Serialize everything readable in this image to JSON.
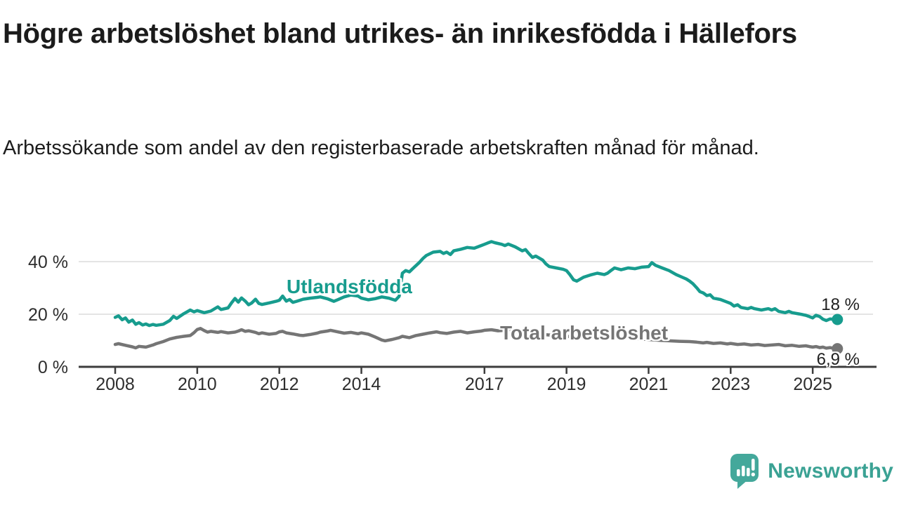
{
  "header": {
    "title": "Högre arbetslöshet bland utrikes- än inrikesfödda i Hällefors",
    "subtitle": "Arbetssökande som andel av den registerbaserade arbetskraften månad för månad."
  },
  "chart_data": {
    "type": "line",
    "title": "Högre arbetslöshet bland utrikes- än inrikesfödda i Hällefors",
    "subtitle": "Arbetssökande som andel av den registerbaserade arbetskraften månad för månad.",
    "xlabel": "",
    "ylabel": "",
    "unit": "%",
    "xlim": [
      2007.9,
      2025.9
    ],
    "ylim": [
      0,
      50
    ],
    "grid": "horizontal",
    "legend_position": "inline-annotations",
    "y_ticks": [
      {
        "value": 0,
        "label": "0 %"
      },
      {
        "value": 20,
        "label": "20 %"
      },
      {
        "value": 40,
        "label": "40 %"
      }
    ],
    "x_ticks": [
      {
        "value": 2008,
        "label": "2008"
      },
      {
        "value": 2010,
        "label": "2010"
      },
      {
        "value": 2012,
        "label": "2012"
      },
      {
        "value": 2014,
        "label": "2014"
      },
      {
        "value": 2017,
        "label": "2017"
      },
      {
        "value": 2019,
        "label": "2019"
      },
      {
        "value": 2021,
        "label": "2021"
      },
      {
        "value": 2023,
        "label": "2023"
      },
      {
        "value": 2025,
        "label": "2025"
      }
    ],
    "series": [
      {
        "name": "Utlandsfödda",
        "color": "#179c8e",
        "end_label": "18 %",
        "end_value": 18,
        "points": [
          [
            2008.0,
            18.8
          ],
          [
            2008.08,
            19.4
          ],
          [
            2008.17,
            17.9
          ],
          [
            2008.25,
            18.6
          ],
          [
            2008.33,
            17.0
          ],
          [
            2008.42,
            17.8
          ],
          [
            2008.5,
            16.2
          ],
          [
            2008.58,
            16.8
          ],
          [
            2008.67,
            15.9
          ],
          [
            2008.75,
            16.3
          ],
          [
            2008.83,
            15.7
          ],
          [
            2008.92,
            16.1
          ],
          [
            2009.0,
            15.8
          ],
          [
            2009.17,
            16.2
          ],
          [
            2009.33,
            17.6
          ],
          [
            2009.42,
            19.2
          ],
          [
            2009.5,
            18.4
          ],
          [
            2009.67,
            20.2
          ],
          [
            2009.83,
            21.6
          ],
          [
            2009.92,
            20.9
          ],
          [
            2010.0,
            21.4
          ],
          [
            2010.17,
            20.6
          ],
          [
            2010.33,
            21.2
          ],
          [
            2010.5,
            22.8
          ],
          [
            2010.58,
            21.8
          ],
          [
            2010.75,
            22.4
          ],
          [
            2010.83,
            24.2
          ],
          [
            2010.92,
            26.0
          ],
          [
            2011.0,
            24.6
          ],
          [
            2011.08,
            26.2
          ],
          [
            2011.17,
            25.0
          ],
          [
            2011.25,
            23.6
          ],
          [
            2011.33,
            24.3
          ],
          [
            2011.42,
            25.7
          ],
          [
            2011.5,
            24.1
          ],
          [
            2011.58,
            23.7
          ],
          [
            2011.75,
            24.3
          ],
          [
            2011.92,
            24.9
          ],
          [
            2012.0,
            25.3
          ],
          [
            2012.08,
            26.9
          ],
          [
            2012.17,
            25.0
          ],
          [
            2012.25,
            25.6
          ],
          [
            2012.33,
            24.5
          ],
          [
            2012.42,
            24.9
          ],
          [
            2012.58,
            25.7
          ],
          [
            2012.75,
            26.1
          ],
          [
            2012.92,
            26.4
          ],
          [
            2013.0,
            26.6
          ],
          [
            2013.17,
            25.9
          ],
          [
            2013.33,
            24.9
          ],
          [
            2013.42,
            25.5
          ],
          [
            2013.58,
            26.6
          ],
          [
            2013.75,
            27.3
          ],
          [
            2013.92,
            26.9
          ],
          [
            2014.0,
            26.1
          ],
          [
            2014.17,
            25.5
          ],
          [
            2014.33,
            25.9
          ],
          [
            2014.5,
            26.6
          ],
          [
            2014.67,
            26.1
          ],
          [
            2014.83,
            25.3
          ],
          [
            2014.92,
            26.8
          ],
          [
            2015.0,
            35.6
          ],
          [
            2015.08,
            36.6
          ],
          [
            2015.17,
            36.1
          ],
          [
            2015.25,
            37.3
          ],
          [
            2015.42,
            39.8
          ],
          [
            2015.5,
            41.2
          ],
          [
            2015.58,
            42.3
          ],
          [
            2015.75,
            43.6
          ],
          [
            2015.92,
            43.9
          ],
          [
            2016.0,
            43.1
          ],
          [
            2016.08,
            43.6
          ],
          [
            2016.17,
            42.7
          ],
          [
            2016.25,
            44.1
          ],
          [
            2016.42,
            44.7
          ],
          [
            2016.58,
            45.4
          ],
          [
            2016.75,
            45.1
          ],
          [
            2016.92,
            46.1
          ],
          [
            2017.0,
            46.6
          ],
          [
            2017.08,
            47.1
          ],
          [
            2017.17,
            47.6
          ],
          [
            2017.25,
            47.2
          ],
          [
            2017.42,
            46.6
          ],
          [
            2017.5,
            46.1
          ],
          [
            2017.58,
            46.7
          ],
          [
            2017.75,
            45.6
          ],
          [
            2017.92,
            44.1
          ],
          [
            2018.0,
            44.6
          ],
          [
            2018.08,
            43.1
          ],
          [
            2018.17,
            41.6
          ],
          [
            2018.25,
            42.1
          ],
          [
            2018.42,
            40.6
          ],
          [
            2018.5,
            39.1
          ],
          [
            2018.58,
            38.1
          ],
          [
            2018.75,
            37.6
          ],
          [
            2018.92,
            37.1
          ],
          [
            2019.0,
            36.6
          ],
          [
            2019.08,
            35.1
          ],
          [
            2019.17,
            33.1
          ],
          [
            2019.25,
            32.6
          ],
          [
            2019.42,
            34.1
          ],
          [
            2019.58,
            34.9
          ],
          [
            2019.75,
            35.6
          ],
          [
            2019.92,
            35.1
          ],
          [
            2020.0,
            35.6
          ],
          [
            2020.08,
            36.6
          ],
          [
            2020.17,
            37.6
          ],
          [
            2020.33,
            36.9
          ],
          [
            2020.5,
            37.6
          ],
          [
            2020.67,
            37.3
          ],
          [
            2020.83,
            37.9
          ],
          [
            2021.0,
            38.1
          ],
          [
            2021.08,
            39.6
          ],
          [
            2021.17,
            38.6
          ],
          [
            2021.33,
            37.6
          ],
          [
            2021.5,
            36.6
          ],
          [
            2021.67,
            35.1
          ],
          [
            2021.83,
            34.0
          ],
          [
            2021.92,
            33.4
          ],
          [
            2022.0,
            32.6
          ],
          [
            2022.08,
            31.6
          ],
          [
            2022.17,
            30.1
          ],
          [
            2022.25,
            28.6
          ],
          [
            2022.33,
            28.1
          ],
          [
            2022.42,
            27.1
          ],
          [
            2022.5,
            27.4
          ],
          [
            2022.58,
            26.1
          ],
          [
            2022.75,
            25.6
          ],
          [
            2022.92,
            24.6
          ],
          [
            2023.0,
            24.1
          ],
          [
            2023.08,
            23.1
          ],
          [
            2023.17,
            23.6
          ],
          [
            2023.25,
            22.6
          ],
          [
            2023.42,
            22.1
          ],
          [
            2023.5,
            22.6
          ],
          [
            2023.58,
            22.1
          ],
          [
            2023.75,
            21.6
          ],
          [
            2023.92,
            22.1
          ],
          [
            2024.0,
            21.6
          ],
          [
            2024.08,
            22.1
          ],
          [
            2024.17,
            21.1
          ],
          [
            2024.33,
            20.6
          ],
          [
            2024.42,
            21.1
          ],
          [
            2024.5,
            20.6
          ],
          [
            2024.67,
            20.1
          ],
          [
            2024.83,
            19.6
          ],
          [
            2024.92,
            19.1
          ],
          [
            2025.0,
            18.6
          ],
          [
            2025.08,
            19.6
          ],
          [
            2025.17,
            19.1
          ],
          [
            2025.25,
            18.1
          ],
          [
            2025.33,
            17.6
          ],
          [
            2025.42,
            18.2
          ],
          [
            2025.55,
            18.0
          ]
        ]
      },
      {
        "name": "Total arbetslöshet",
        "color": "#757575",
        "end_label": "6,9 %",
        "end_value": 6.9,
        "points": [
          [
            2008.0,
            8.5
          ],
          [
            2008.08,
            8.8
          ],
          [
            2008.25,
            8.2
          ],
          [
            2008.42,
            7.6
          ],
          [
            2008.5,
            7.2
          ],
          [
            2008.58,
            7.8
          ],
          [
            2008.75,
            7.5
          ],
          [
            2008.92,
            8.3
          ],
          [
            2009.0,
            8.8
          ],
          [
            2009.17,
            9.6
          ],
          [
            2009.33,
            10.6
          ],
          [
            2009.5,
            11.2
          ],
          [
            2009.67,
            11.6
          ],
          [
            2009.83,
            11.9
          ],
          [
            2009.92,
            13.0
          ],
          [
            2010.0,
            14.2
          ],
          [
            2010.08,
            14.6
          ],
          [
            2010.17,
            13.8
          ],
          [
            2010.25,
            13.2
          ],
          [
            2010.33,
            13.5
          ],
          [
            2010.5,
            13.1
          ],
          [
            2010.58,
            13.4
          ],
          [
            2010.75,
            12.9
          ],
          [
            2010.92,
            13.2
          ],
          [
            2011.0,
            13.6
          ],
          [
            2011.08,
            14.1
          ],
          [
            2011.17,
            13.5
          ],
          [
            2011.25,
            13.7
          ],
          [
            2011.42,
            13.1
          ],
          [
            2011.5,
            12.6
          ],
          [
            2011.58,
            12.9
          ],
          [
            2011.75,
            12.4
          ],
          [
            2011.92,
            12.7
          ],
          [
            2012.0,
            13.3
          ],
          [
            2012.08,
            13.5
          ],
          [
            2012.17,
            12.9
          ],
          [
            2012.33,
            12.5
          ],
          [
            2012.5,
            12.0
          ],
          [
            2012.58,
            11.9
          ],
          [
            2012.75,
            12.3
          ],
          [
            2012.92,
            12.8
          ],
          [
            2013.0,
            13.2
          ],
          [
            2013.17,
            13.6
          ],
          [
            2013.25,
            13.9
          ],
          [
            2013.42,
            13.3
          ],
          [
            2013.58,
            12.8
          ],
          [
            2013.75,
            13.1
          ],
          [
            2013.92,
            12.6
          ],
          [
            2014.0,
            12.9
          ],
          [
            2014.17,
            12.4
          ],
          [
            2014.33,
            11.4
          ],
          [
            2014.5,
            10.2
          ],
          [
            2014.58,
            9.9
          ],
          [
            2014.75,
            10.4
          ],
          [
            2014.92,
            11.1
          ],
          [
            2015.0,
            11.6
          ],
          [
            2015.17,
            11.1
          ],
          [
            2015.33,
            11.9
          ],
          [
            2015.5,
            12.4
          ],
          [
            2015.67,
            12.9
          ],
          [
            2015.83,
            13.3
          ],
          [
            2015.92,
            13.0
          ],
          [
            2016.08,
            12.7
          ],
          [
            2016.25,
            13.2
          ],
          [
            2016.42,
            13.5
          ],
          [
            2016.58,
            12.9
          ],
          [
            2016.75,
            13.3
          ],
          [
            2016.92,
            13.6
          ],
          [
            2017.0,
            13.9
          ],
          [
            2017.17,
            14.1
          ],
          [
            2017.33,
            13.7
          ],
          [
            2017.5,
            13.9
          ],
          [
            2017.67,
            13.6
          ],
          [
            2017.83,
            13.2
          ],
          [
            2018.0,
            13.0
          ],
          [
            2018.25,
            12.6
          ],
          [
            2018.5,
            12.2
          ],
          [
            2018.75,
            11.9
          ],
          [
            2019.0,
            11.6
          ],
          [
            2019.25,
            11.2
          ],
          [
            2019.5,
            11.0
          ],
          [
            2019.75,
            11.3
          ],
          [
            2020.0,
            11.6
          ],
          [
            2020.25,
            11.2
          ],
          [
            2020.5,
            11.0
          ],
          [
            2020.75,
            10.7
          ],
          [
            2021.0,
            10.4
          ],
          [
            2021.25,
            10.1
          ],
          [
            2021.5,
            9.9
          ],
          [
            2021.75,
            9.7
          ],
          [
            2022.0,
            9.6
          ],
          [
            2022.17,
            9.4
          ],
          [
            2022.33,
            9.1
          ],
          [
            2022.42,
            9.3
          ],
          [
            2022.58,
            8.9
          ],
          [
            2022.75,
            9.1
          ],
          [
            2022.92,
            8.7
          ],
          [
            2023.0,
            8.9
          ],
          [
            2023.17,
            8.5
          ],
          [
            2023.33,
            8.7
          ],
          [
            2023.5,
            8.3
          ],
          [
            2023.67,
            8.5
          ],
          [
            2023.83,
            8.1
          ],
          [
            2024.0,
            8.3
          ],
          [
            2024.17,
            8.5
          ],
          [
            2024.33,
            8.0
          ],
          [
            2024.5,
            8.2
          ],
          [
            2024.67,
            7.8
          ],
          [
            2024.83,
            8.0
          ],
          [
            2024.92,
            7.7
          ],
          [
            2025.0,
            7.5
          ],
          [
            2025.08,
            7.7
          ],
          [
            2025.17,
            7.3
          ],
          [
            2025.25,
            7.5
          ],
          [
            2025.33,
            7.1
          ],
          [
            2025.42,
            7.3
          ],
          [
            2025.55,
            6.9
          ]
        ]
      }
    ]
  },
  "logo": {
    "text": "Newsworthy",
    "text_color": "#3ba294",
    "icon": "speech-bubble-bar-chart-icon",
    "icon_color": "#44a89b"
  },
  "colors": {
    "background": "#ffffff",
    "title_text": "#1b1b1b",
    "axis_text": "#2e2e2e",
    "axis_line": "#3d3d3d",
    "gridline": "#dcdcdc",
    "value_label_text": "#1f1f1f"
  }
}
